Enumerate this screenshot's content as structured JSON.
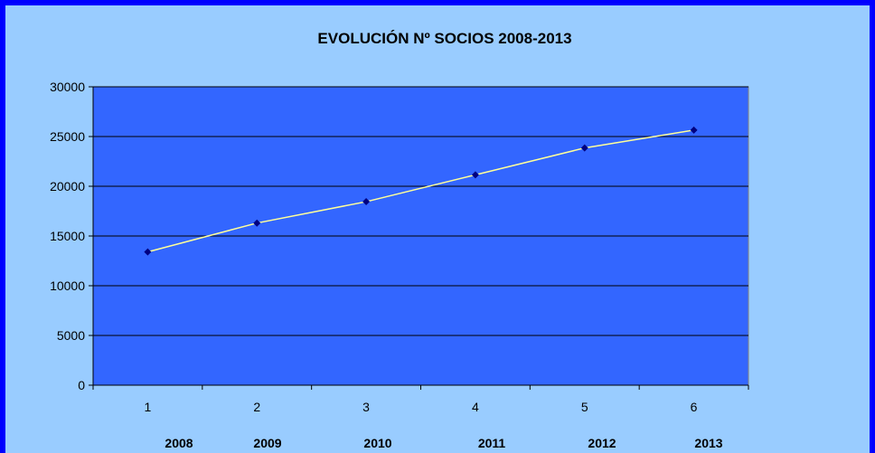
{
  "chart_data": {
    "type": "line",
    "title": "EVOLUCIÓN Nº SOCIOS 2008-2013",
    "xlabel": "",
    "ylabel": "",
    "categories": [
      "1",
      "2",
      "3",
      "4",
      "5",
      "6"
    ],
    "year_labels": [
      "2008",
      "2009",
      "2010",
      "2011",
      "2012",
      "2013"
    ],
    "series": [
      {
        "values": [
          13400,
          16300,
          18450,
          21150,
          23850,
          25650
        ]
      }
    ],
    "ylim": [
      0,
      30000
    ],
    "yticks": [
      "0",
      "5000",
      "10000",
      "15000",
      "20000",
      "25000",
      "30000"
    ],
    "grid": true,
    "legend": "none",
    "colors": {
      "outer_background": "#99ccff",
      "frame_border": "#0000ff",
      "plot_background": "#3366ff",
      "line": "#ffff99",
      "marker": "#000080",
      "gridline": "#000000"
    }
  }
}
